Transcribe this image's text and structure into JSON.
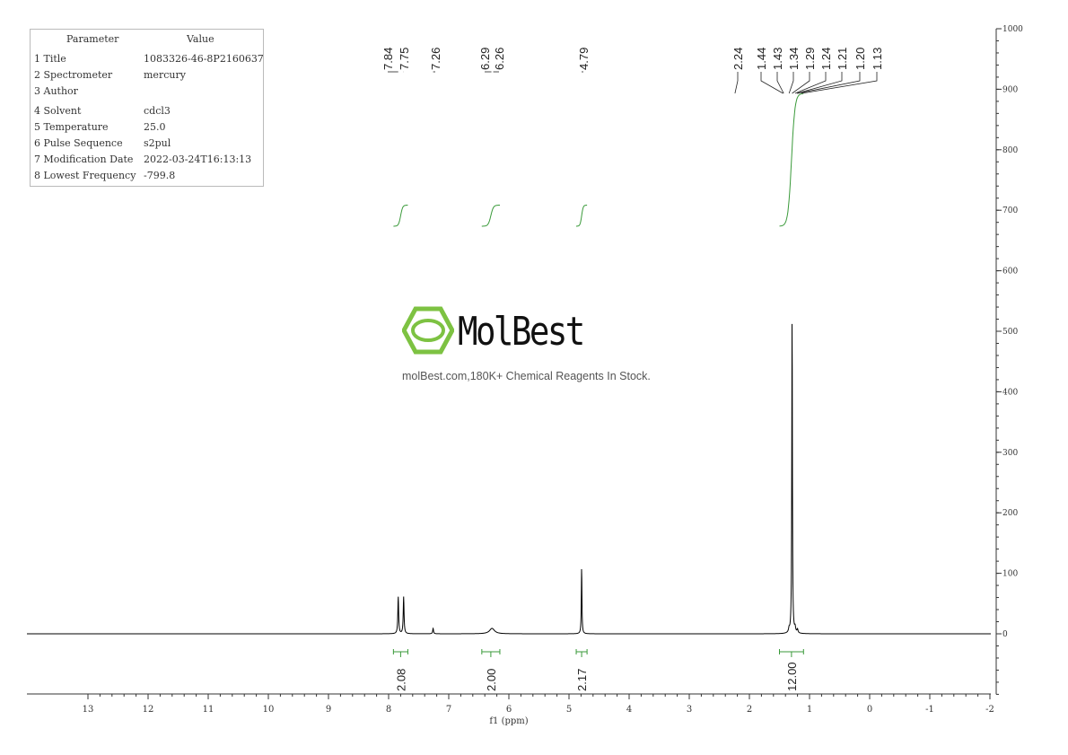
{
  "parameters": {
    "header": [
      "Parameter",
      "Value"
    ],
    "rows": [
      [
        "1 Title",
        "1083326-46-8P2160637"
      ],
      [
        "2 Spectrometer",
        "mercury"
      ],
      [
        "3 Author",
        ""
      ],
      [
        "4 Solvent",
        "cdcl3"
      ],
      [
        "5 Temperature",
        "25.0"
      ],
      [
        "6 Pulse Sequence",
        "s2pul"
      ],
      [
        "7 Modification Date",
        "2022-03-24T16:13:13"
      ],
      [
        "8 Lowest Frequency",
        "-799.8"
      ]
    ]
  },
  "watermark": {
    "logo_text": "MolBest",
    "tagline": "molBest.com,180K+ Chemical Reagents In Stock.",
    "logo_color": "#7dc242"
  },
  "chart_data": {
    "type": "line",
    "xlabel": "f1 (ppm)",
    "xlim": [
      13.9,
      -2
    ],
    "ylim": [
      -100,
      1000
    ],
    "x_ticks": [
      13,
      12,
      11,
      10,
      9,
      8,
      7,
      6,
      5,
      4,
      3,
      2,
      1,
      0,
      -1,
      -2
    ],
    "y_ticks": [
      0,
      100,
      200,
      300,
      400,
      500,
      600,
      700,
      800,
      900,
      1000
    ],
    "line_color": "#000000",
    "integral_color": "#3a9a3a",
    "peaks": [
      {
        "ppm": 7.84,
        "height": 61,
        "width": 0.008
      },
      {
        "ppm": 7.75,
        "height": 61,
        "width": 0.008
      },
      {
        "ppm": 7.26,
        "height": 9,
        "width": 0.008
      },
      {
        "ppm": 6.28,
        "height": 9,
        "width": 0.05
      },
      {
        "ppm": 4.79,
        "height": 110,
        "width": 0.006
      },
      {
        "ppm": 1.29,
        "height": 527,
        "width": 0.006
      },
      {
        "ppm": 1.24,
        "height": 8,
        "width": 0.01
      },
      {
        "ppm": 1.2,
        "height": 6,
        "width": 0.01
      },
      {
        "ppm": 1.34,
        "height": 6,
        "width": 0.01
      }
    ],
    "peak_labels": [
      "7.84",
      "7.75",
      "7.26",
      "6.29",
      "6.26",
      "4.79",
      "2.24",
      "1.44",
      "1.43",
      "1.34",
      "1.29",
      "1.24",
      "1.21",
      "1.20",
      "1.13"
    ],
    "integrals": [
      {
        "from": 7.92,
        "to": 7.68,
        "value": "2.08",
        "rise": 0.07
      },
      {
        "from": 6.45,
        "to": 6.15,
        "value": "2.00",
        "rise": 0.07
      },
      {
        "from": 4.88,
        "to": 4.7,
        "value": "2.17",
        "rise": 0.07
      },
      {
        "from": 1.5,
        "to": 1.1,
        "value": "12.00",
        "rise": 0.44
      }
    ]
  }
}
